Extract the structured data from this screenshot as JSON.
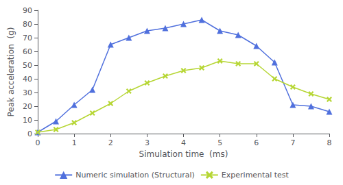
{
  "chart_data": {
    "type": "line",
    "xlabel": "Simulation time  (ms)",
    "ylabel": "Peak acceleration  (g)",
    "x": [
      0,
      0.5,
      1.0,
      1.5,
      2.0,
      2.5,
      3.0,
      3.5,
      4.0,
      4.5,
      5.0,
      5.5,
      6.0,
      6.5,
      7.0,
      7.5,
      8.0
    ],
    "series": [
      {
        "name": "Numeric simulation (Structural)",
        "marker": "triangle",
        "values": [
          1,
          9,
          21,
          32,
          65,
          70,
          75,
          77,
          80,
          83,
          75,
          72,
          64,
          52,
          21,
          20,
          16
        ]
      },
      {
        "name": "Experimental test",
        "marker": "x",
        "values": [
          1,
          3,
          8,
          15,
          22,
          31,
          37,
          42,
          46,
          48,
          53,
          51,
          51,
          40,
          34,
          29,
          25
        ]
      }
    ],
    "xlim": [
      0,
      8
    ],
    "ylim": [
      0,
      90
    ],
    "xticks": [
      0,
      1,
      2,
      3,
      4,
      5,
      6,
      7,
      8
    ],
    "yticks": [
      0,
      10,
      20,
      30,
      40,
      50,
      60,
      70,
      80,
      90
    ],
    "grid": false,
    "legend": "bottom"
  }
}
